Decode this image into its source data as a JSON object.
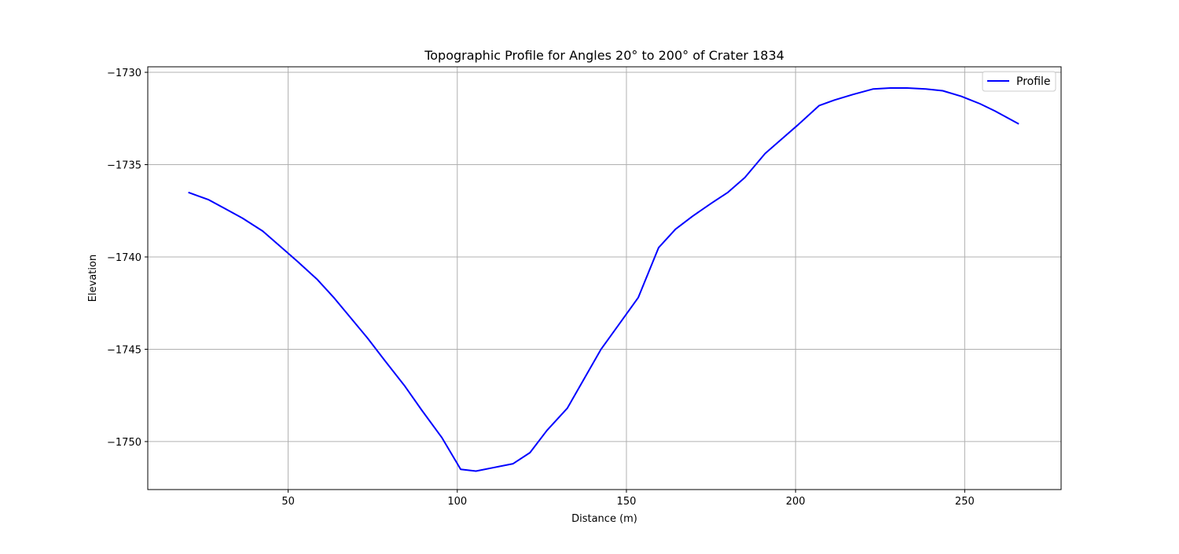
{
  "chart_data": {
    "type": "line",
    "title": "Topographic Profile for Angles 20° to 200° of Crater 1834",
    "xlabel": "Distance (m)",
    "ylabel": "Elevation",
    "xlim": [
      8.5,
      278.5
    ],
    "ylim": [
      -1752.6,
      -1729.7
    ],
    "xticks": [
      50,
      100,
      150,
      200,
      250
    ],
    "yticks": [
      -1730,
      -1735,
      -1740,
      -1745,
      -1750
    ],
    "xtick_labels": [
      "50",
      "100",
      "150",
      "200",
      "250"
    ],
    "ytick_labels": [
      "−1730",
      "−1735",
      "−1740",
      "−1745",
      "−1750"
    ],
    "grid": true,
    "legend": {
      "position": "top-right",
      "entries": [
        "Profile"
      ]
    },
    "series": [
      {
        "name": "Profile",
        "color": "#0000ff",
        "x": [
          20.5,
          26.5,
          31.5,
          36.5,
          42.5,
          47.5,
          52.5,
          58.5,
          63.5,
          68.5,
          73.5,
          78.5,
          84.5,
          89.5,
          95.5,
          101,
          105.5,
          111,
          116.5,
          121.5,
          126.5,
          132.5,
          137.5,
          142.5,
          148,
          153.5,
          159.5,
          164.5,
          169.5,
          175,
          180,
          185,
          191,
          196,
          201,
          207,
          211.5,
          217,
          223,
          228,
          233,
          238.5,
          243.5,
          249,
          254.5,
          259,
          266
        ],
        "y": [
          -1736.5,
          -1736.9,
          -1737.4,
          -1737.9,
          -1738.6,
          -1739.4,
          -1740.2,
          -1741.2,
          -1742.2,
          -1743.3,
          -1744.4,
          -1745.6,
          -1747.0,
          -1748.3,
          -1749.8,
          -1751.5,
          -1751.6,
          -1751.4,
          -1751.2,
          -1750.6,
          -1749.4,
          -1748.2,
          -1746.6,
          -1745.0,
          -1743.6,
          -1742.2,
          -1739.5,
          -1738.5,
          -1737.8,
          -1737.1,
          -1736.5,
          -1735.7,
          -1734.4,
          -1733.6,
          -1732.8,
          -1731.8,
          -1731.5,
          -1731.2,
          -1730.9,
          -1730.85,
          -1730.85,
          -1730.9,
          -1731.0,
          -1731.3,
          -1731.7,
          -1732.1,
          -1732.8
        ]
      }
    ]
  }
}
